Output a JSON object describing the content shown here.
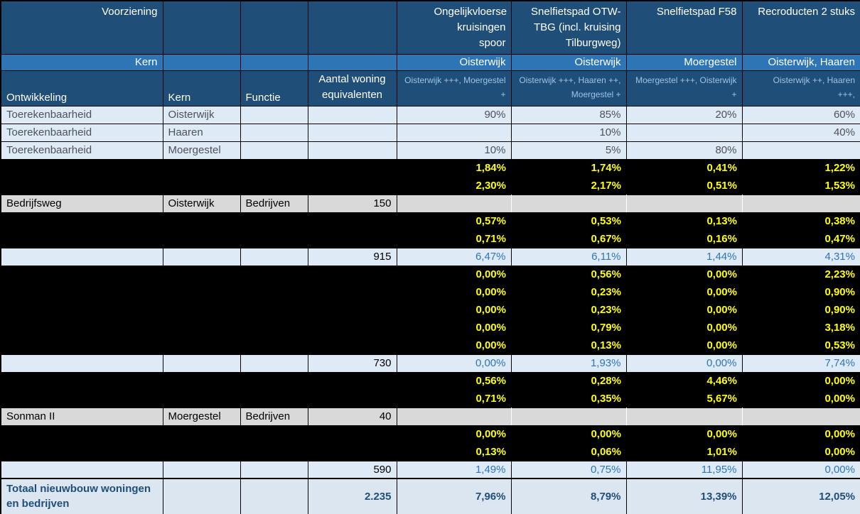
{
  "table": {
    "header": {
      "row1": [
        "Voorziening",
        "",
        "",
        "",
        "Ongelijkvloerse kruisingen spoor",
        "Snelfietspad OTW-TBG (incl. kruising Tilburgweg)",
        "Snelfietspad F58",
        "Recroducten 2 stuks"
      ],
      "row2": [
        "Kern",
        "",
        "",
        "",
        "Oisterwijk",
        "Oisterwijk",
        "Moergestel",
        "Oisterwijk, Haaren"
      ],
      "row3": [
        "Ontwikkeling",
        "Kern",
        "Functie",
        "Aantal woning equivalenten",
        "Oisterwijk +++, Moergestel +",
        "Oisterwijk +++, Haaren ++, Moergestel +",
        "Moergestel +++, Oisterwijk +",
        "Oisterwijk ++, Haaren +++,"
      ]
    },
    "rows": [
      {
        "type": "light",
        "cells": [
          "Toerekenbaarheid",
          "Oisterwijk",
          "",
          "",
          "90%",
          "85%",
          "20%",
          "60%"
        ]
      },
      {
        "type": "light",
        "cells": [
          "Toerekenbaarheid",
          "Haaren",
          "",
          "",
          "",
          "10%",
          "",
          "40%"
        ]
      },
      {
        "type": "light",
        "cells": [
          "Toerekenbaarheid",
          "Moergestel",
          "",
          "",
          "10%",
          "5%",
          "80%",
          ""
        ]
      },
      {
        "type": "black",
        "cells": [
          "",
          "",
          "",
          "",
          "1,84%",
          "1,74%",
          "0,41%",
          "1,22%"
        ]
      },
      {
        "type": "black",
        "cells": [
          "",
          "",
          "",
          "",
          "2,30%",
          "2,17%",
          "0,51%",
          "1,53%"
        ]
      },
      {
        "type": "gray",
        "cells": [
          "Bedrijfsweg",
          "Oisterwijk",
          "Bedrijven",
          "150",
          "",
          "",
          "",
          ""
        ]
      },
      {
        "type": "black",
        "cells": [
          "",
          "",
          "",
          "",
          "0,57%",
          "0,53%",
          "0,13%",
          "0,38%"
        ]
      },
      {
        "type": "black",
        "cells": [
          "",
          "",
          "",
          "",
          "0,71%",
          "0,67%",
          "0,16%",
          "0,47%"
        ]
      },
      {
        "type": "blue",
        "cells": [
          "",
          "",
          "",
          "915",
          "6,47%",
          "6,11%",
          "1,44%",
          "4,31%"
        ]
      },
      {
        "type": "black",
        "cells": [
          "",
          "",
          "",
          "",
          "0,00%",
          "0,56%",
          "0,00%",
          "2,23%"
        ]
      },
      {
        "type": "black",
        "cells": [
          "",
          "",
          "",
          "",
          "0,00%",
          "0,23%",
          "0,00%",
          "0,90%"
        ]
      },
      {
        "type": "black",
        "cells": [
          "",
          "",
          "",
          "",
          "0,00%",
          "0,23%",
          "0,00%",
          "0,90%"
        ]
      },
      {
        "type": "black",
        "cells": [
          "",
          "",
          "",
          "",
          "0,00%",
          "0,79%",
          "0,00%",
          "3,18%"
        ]
      },
      {
        "type": "black",
        "cells": [
          "",
          "",
          "",
          "",
          "0,00%",
          "0,13%",
          "0,00%",
          "0,53%"
        ]
      },
      {
        "type": "blue",
        "cells": [
          "",
          "",
          "",
          "730",
          "0,00%",
          "1,93%",
          "0,00%",
          "7,74%"
        ]
      },
      {
        "type": "black",
        "cells": [
          "",
          "",
          "",
          "",
          "0,56%",
          "0,28%",
          "4,46%",
          "0,00%"
        ]
      },
      {
        "type": "black",
        "cells": [
          "",
          "",
          "",
          "",
          "0,71%",
          "0,35%",
          "5,67%",
          "0,00%"
        ]
      },
      {
        "type": "gray",
        "cells": [
          "Sonman II",
          "Moergestel",
          "Bedrijven",
          "40",
          "",
          "",
          "",
          ""
        ]
      },
      {
        "type": "black",
        "cells": [
          "",
          "",
          "",
          "",
          "0,00%",
          "0,00%",
          "0,00%",
          "0,00%"
        ]
      },
      {
        "type": "black",
        "cells": [
          "",
          "",
          "",
          "",
          "0,13%",
          "0,06%",
          "1,01%",
          "0,00%"
        ]
      },
      {
        "type": "blue",
        "cells": [
          "",
          "",
          "",
          "590",
          "1,49%",
          "0,75%",
          "11,95%",
          "0,00%"
        ]
      },
      {
        "type": "total",
        "cells": [
          "Totaal nieuwbouw woningen en bedrijven",
          "",
          "",
          "2.235",
          "7,96%",
          "8,79%",
          "13,39%",
          "12,05%"
        ]
      }
    ],
    "colors": {
      "header_dark_blue": "#1F4E79",
      "header_medium_blue": "#2E75B6",
      "light_blue_row": "#DEEAF6",
      "gray_row": "#D9D9D9",
      "black_row": "#000000",
      "yellow_value_text": "#FFFF00",
      "blue_value_text": "#2E75B6",
      "muted_row_text": "#4E525A",
      "subheader_text": "#9DC3E6",
      "total_row_bg": "#DCE6F1"
    }
  }
}
